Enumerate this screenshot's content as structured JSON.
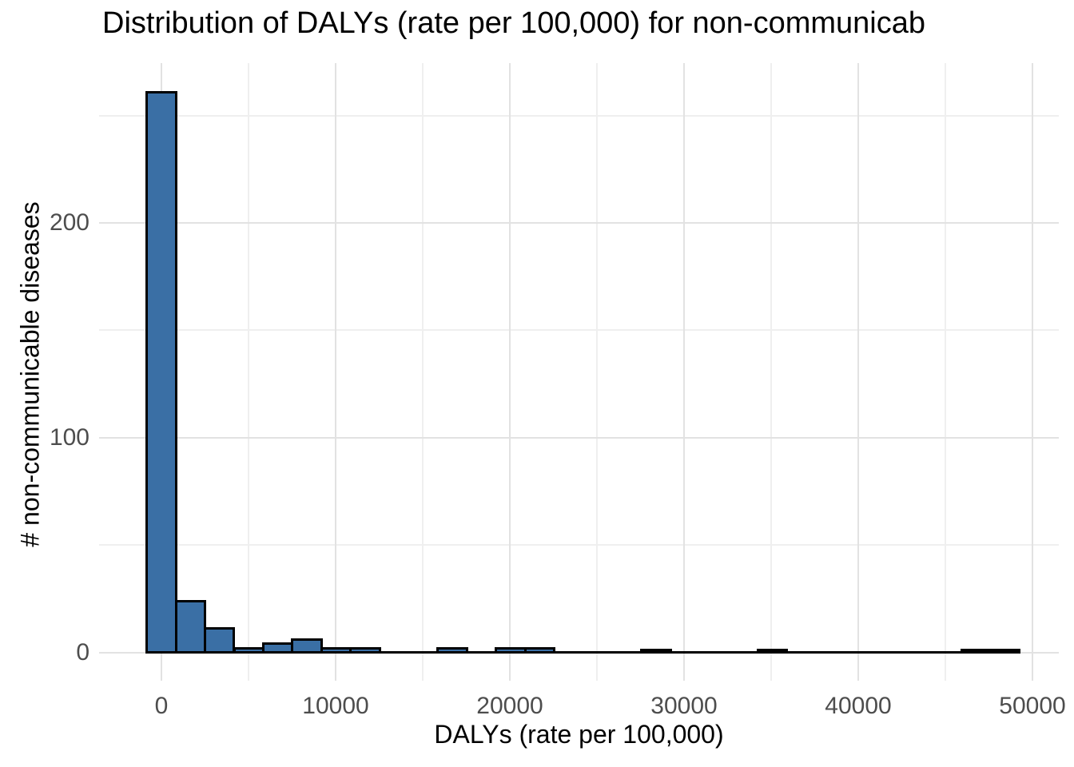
{
  "title": "Distribution of DALYs (rate per 100,000) for non-communicab",
  "chart_data": {
    "type": "bar",
    "subtype": "histogram",
    "title": "Distribution of DALYs (rate per 100,000) for non-communicab",
    "xlabel": "DALYs (rate per 100,000)",
    "ylabel": "# non-communicable diseases",
    "x_ticks": [
      0,
      10000,
      20000,
      30000,
      40000,
      50000
    ],
    "x_minor_ticks": [
      5000,
      15000,
      25000,
      35000,
      45000
    ],
    "y_ticks": [
      0,
      100,
      200
    ],
    "y_minor_ticks": [
      50,
      150,
      250
    ],
    "xlim": [
      -3600,
      52000
    ],
    "ylim": [
      0,
      275
    ],
    "grid": true,
    "legend": "none",
    "binwidth": 1670,
    "bins": [
      {
        "center": 0,
        "count": 261
      },
      {
        "center": 1670,
        "count": 24
      },
      {
        "center": 3340,
        "count": 11
      },
      {
        "center": 5010,
        "count": 2
      },
      {
        "center": 6680,
        "count": 4
      },
      {
        "center": 8350,
        "count": 6
      },
      {
        "center": 10020,
        "count": 2
      },
      {
        "center": 11690,
        "count": 2
      },
      {
        "center": 13360,
        "count": 0
      },
      {
        "center": 15030,
        "count": 0
      },
      {
        "center": 16700,
        "count": 2
      },
      {
        "center": 18370,
        "count": 0
      },
      {
        "center": 20040,
        "count": 2
      },
      {
        "center": 21710,
        "count": 2
      },
      {
        "center": 23380,
        "count": 0
      },
      {
        "center": 25050,
        "count": 0
      },
      {
        "center": 26720,
        "count": 0
      },
      {
        "center": 28390,
        "count": 1
      },
      {
        "center": 30060,
        "count": 0
      },
      {
        "center": 31730,
        "count": 0
      },
      {
        "center": 33400,
        "count": 0
      },
      {
        "center": 35070,
        "count": 1
      },
      {
        "center": 36740,
        "count": 0
      },
      {
        "center": 38410,
        "count": 0
      },
      {
        "center": 40080,
        "count": 0
      },
      {
        "center": 41750,
        "count": 0
      },
      {
        "center": 43420,
        "count": 0
      },
      {
        "center": 45090,
        "count": 0
      },
      {
        "center": 46760,
        "count": 1
      },
      {
        "center": 48430,
        "count": 1
      }
    ],
    "colors": {
      "bar_fill": "#3a6fa5",
      "bar_stroke": "#000000",
      "grid_major": "#e2e2e2",
      "grid_minor": "#efefef",
      "tick_text": "#4d4d4d",
      "title_text": "#000000",
      "background": "#ffffff"
    }
  }
}
